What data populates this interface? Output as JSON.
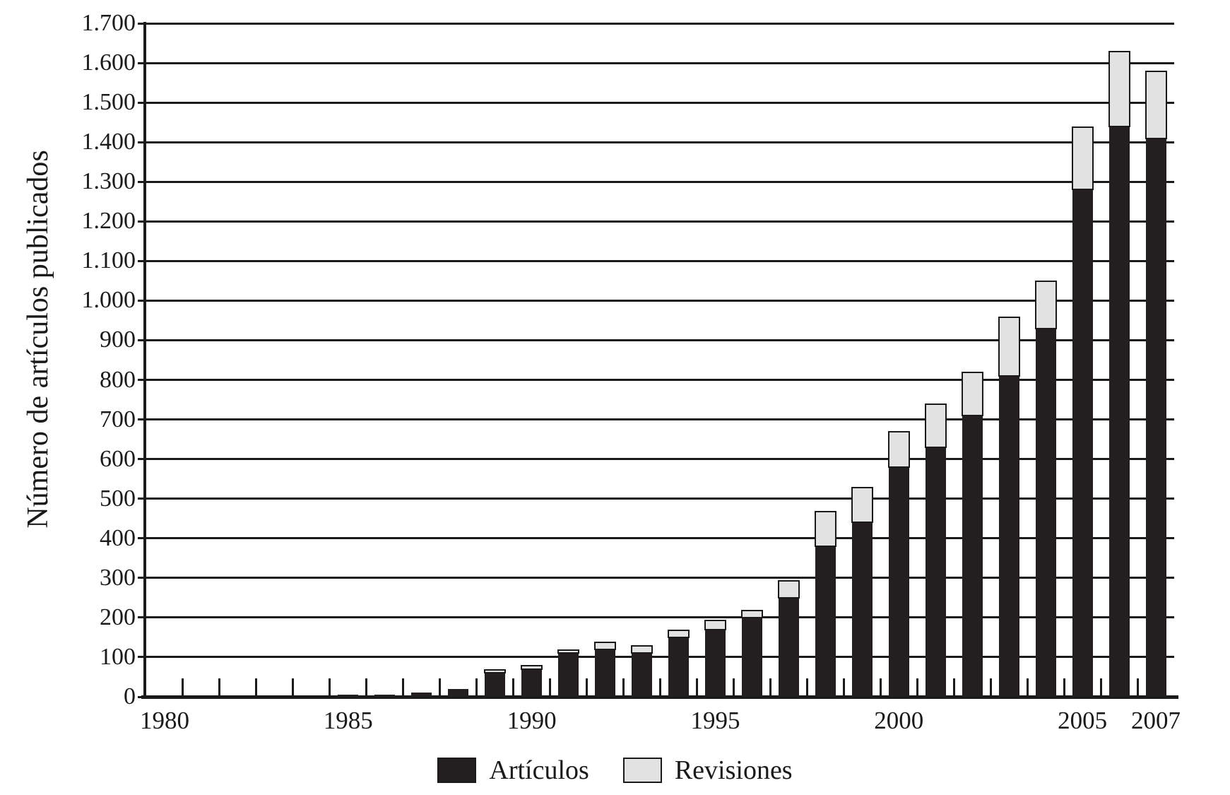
{
  "y_axis": {
    "title": "Número de artículos publicados",
    "tick_labels": [
      "0",
      "100",
      "200",
      "300",
      "400",
      "500",
      "600",
      "700",
      "800",
      "900",
      "1.000",
      "1.100",
      "1.200",
      "1.300",
      "1.400",
      "1.500",
      "1.600",
      "1.700"
    ]
  },
  "x_axis": {
    "tick_labels": [
      "1980",
      "1985",
      "1990",
      "1995",
      "2000",
      "2005",
      "2007"
    ],
    "tick_label_years": [
      1980,
      1985,
      1990,
      1995,
      2000,
      2005,
      2007
    ]
  },
  "legend": {
    "items": [
      {
        "label": "Artículos",
        "color": "#231f20"
      },
      {
        "label": "Revisiones",
        "color": "#e2e2e2"
      }
    ]
  },
  "colors": {
    "articulos": "#231f20",
    "revisiones": "#e2e2e2",
    "axis": "#1a1a1a"
  },
  "chart_data": {
    "type": "bar",
    "stacked": true,
    "title": "",
    "xlabel": "",
    "ylabel": "Número de artículos publicados",
    "ylim": [
      0,
      1700
    ],
    "ytick_step": 100,
    "grid": "horizontal",
    "legend_position": "bottom",
    "categories": [
      1980,
      1981,
      1982,
      1983,
      1984,
      1985,
      1986,
      1987,
      1988,
      1989,
      1990,
      1991,
      1992,
      1993,
      1994,
      1995,
      1996,
      1997,
      1998,
      1999,
      2000,
      2001,
      2002,
      2003,
      2004,
      2005,
      2006,
      2007
    ],
    "series": [
      {
        "name": "Artículos",
        "color": "#231f20",
        "values": [
          0,
          0,
          0,
          0,
          0,
          5,
          5,
          10,
          20,
          60,
          70,
          110,
          120,
          110,
          150,
          170,
          200,
          250,
          380,
          440,
          580,
          630,
          710,
          810,
          930,
          1280,
          1440,
          1410
        ]
      },
      {
        "name": "Revisiones",
        "color": "#e2e2e2",
        "values": [
          0,
          0,
          0,
          0,
          0,
          0,
          0,
          0,
          0,
          10,
          10,
          10,
          20,
          20,
          20,
          25,
          20,
          45,
          90,
          90,
          90,
          110,
          110,
          150,
          120,
          160,
          190,
          170
        ]
      }
    ]
  }
}
